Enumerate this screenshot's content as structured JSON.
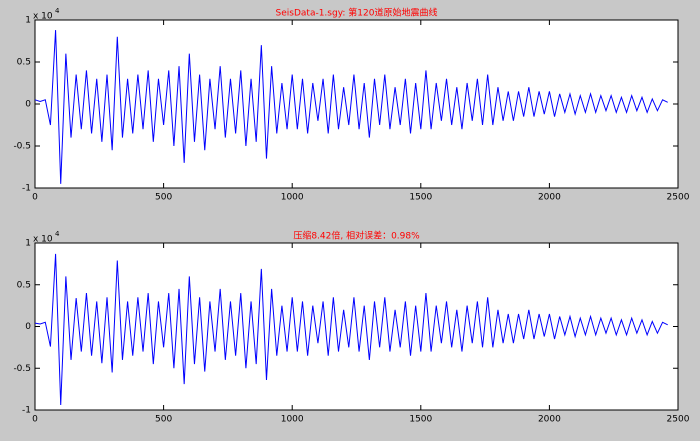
{
  "chart_data": [
    {
      "type": "line",
      "title": "SeisData-1.sgy: 第120道原始地震曲线",
      "title_color": "#ff0000",
      "y_multiplier": {
        "base": "x 10",
        "exponent": "4"
      },
      "xlim": [
        0,
        2500
      ],
      "xticks": [
        0,
        500,
        1000,
        1500,
        2000,
        2500
      ],
      "ylim": [
        -1,
        1
      ],
      "yticks": [
        -1,
        -0.5,
        0,
        0.5,
        1
      ],
      "color": "#0000ff",
      "x": [
        0,
        20,
        40,
        60,
        80,
        100,
        120,
        140,
        160,
        180,
        200,
        220,
        240,
        260,
        280,
        300,
        320,
        340,
        360,
        380,
        400,
        420,
        440,
        460,
        480,
        500,
        520,
        540,
        560,
        580,
        600,
        620,
        640,
        660,
        680,
        700,
        720,
        740,
        760,
        780,
        800,
        820,
        840,
        860,
        880,
        900,
        920,
        940,
        960,
        980,
        1000,
        1020,
        1040,
        1060,
        1080,
        1100,
        1120,
        1140,
        1160,
        1180,
        1200,
        1220,
        1240,
        1260,
        1280,
        1300,
        1320,
        1340,
        1360,
        1380,
        1400,
        1420,
        1440,
        1460,
        1480,
        1500,
        1520,
        1540,
        1560,
        1580,
        1600,
        1620,
        1640,
        1660,
        1680,
        1700,
        1720,
        1740,
        1760,
        1780,
        1800,
        1820,
        1840,
        1860,
        1880,
        1900,
        1920,
        1940,
        1960,
        1980,
        2000,
        2020,
        2040,
        2060,
        2080,
        2100,
        2120,
        2140,
        2160,
        2180,
        2200,
        2220,
        2240,
        2260,
        2280,
        2300,
        2320,
        2340,
        2360,
        2380,
        2400,
        2420,
        2440,
        2460
      ],
      "values": [
        0.05,
        0.03,
        0.05,
        -0.25,
        0.88,
        -0.95,
        0.6,
        -0.4,
        0.35,
        -0.3,
        0.4,
        -0.35,
        0.3,
        -0.45,
        0.35,
        -0.55,
        0.8,
        -0.4,
        0.3,
        -0.35,
        0.35,
        -0.3,
        0.4,
        -0.45,
        0.3,
        -0.25,
        0.4,
        -0.5,
        0.45,
        -0.7,
        0.6,
        -0.45,
        0.35,
        -0.55,
        0.3,
        -0.3,
        0.45,
        -0.4,
        0.3,
        -0.35,
        0.4,
        -0.5,
        0.3,
        -0.45,
        0.7,
        -0.65,
        0.45,
        -0.35,
        0.25,
        -0.3,
        0.35,
        -0.3,
        0.3,
        -0.35,
        0.25,
        -0.2,
        0.3,
        -0.35,
        0.35,
        -0.3,
        0.2,
        -0.25,
        0.35,
        -0.3,
        0.25,
        -0.4,
        0.3,
        -0.25,
        0.35,
        -0.3,
        0.2,
        -0.25,
        0.3,
        -0.35,
        0.25,
        -0.3,
        0.4,
        -0.3,
        0.25,
        -0.2,
        0.3,
        -0.25,
        0.2,
        -0.3,
        0.25,
        -0.2,
        0.3,
        -0.25,
        0.35,
        -0.25,
        0.2,
        -0.2,
        0.15,
        -0.2,
        0.15,
        -0.15,
        0.2,
        -0.15,
        0.15,
        -0.12,
        0.15,
        -0.15,
        0.12,
        -0.1,
        0.12,
        -0.12,
        0.1,
        -0.1,
        0.12,
        -0.1,
        0.1,
        -0.08,
        0.1,
        -0.1,
        0.08,
        -0.1,
        0.1,
        -0.08,
        0.08,
        -0.1,
        0.06,
        -0.08,
        0.05,
        0.02
      ]
    },
    {
      "type": "line",
      "title": "压缩8.42倍, 相对误差：0.98%",
      "title_color": "#ff0000",
      "y_multiplier": {
        "base": "x 10",
        "exponent": "4"
      },
      "xlim": [
        0,
        2500
      ],
      "xticks": [
        0,
        500,
        1000,
        1500,
        2000,
        2500
      ],
      "ylim": [
        -1,
        1
      ],
      "yticks": [
        -1,
        -0.5,
        0,
        0.5,
        1
      ],
      "color": "#0000ff",
      "x": [
        0,
        20,
        40,
        60,
        80,
        100,
        120,
        140,
        160,
        180,
        200,
        220,
        240,
        260,
        280,
        300,
        320,
        340,
        360,
        380,
        400,
        420,
        440,
        460,
        480,
        500,
        520,
        540,
        560,
        580,
        600,
        620,
        640,
        660,
        680,
        700,
        720,
        740,
        760,
        780,
        800,
        820,
        840,
        860,
        880,
        900,
        920,
        940,
        960,
        980,
        1000,
        1020,
        1040,
        1060,
        1080,
        1100,
        1120,
        1140,
        1160,
        1180,
        1200,
        1220,
        1240,
        1260,
        1280,
        1300,
        1320,
        1340,
        1360,
        1380,
        1400,
        1420,
        1440,
        1460,
        1480,
        1500,
        1520,
        1540,
        1560,
        1580,
        1600,
        1620,
        1640,
        1660,
        1680,
        1700,
        1720,
        1740,
        1760,
        1780,
        1800,
        1820,
        1840,
        1860,
        1880,
        1900,
        1920,
        1940,
        1960,
        1980,
        2000,
        2020,
        2040,
        2060,
        2080,
        2100,
        2120,
        2140,
        2160,
        2180,
        2200,
        2220,
        2240,
        2260,
        2280,
        2300,
        2320,
        2340,
        2360,
        2380,
        2400,
        2420,
        2440,
        2460
      ],
      "values": [
        0.04,
        0.03,
        0.05,
        -0.24,
        0.87,
        -0.94,
        0.6,
        -0.4,
        0.34,
        -0.3,
        0.4,
        -0.35,
        0.3,
        -0.44,
        0.35,
        -0.55,
        0.79,
        -0.4,
        0.3,
        -0.35,
        0.35,
        -0.3,
        0.4,
        -0.45,
        0.3,
        -0.25,
        0.4,
        -0.5,
        0.45,
        -0.69,
        0.6,
        -0.45,
        0.35,
        -0.54,
        0.3,
        -0.3,
        0.45,
        -0.4,
        0.3,
        -0.35,
        0.4,
        -0.5,
        0.3,
        -0.45,
        0.69,
        -0.64,
        0.45,
        -0.35,
        0.25,
        -0.3,
        0.35,
        -0.3,
        0.3,
        -0.35,
        0.25,
        -0.2,
        0.3,
        -0.35,
        0.35,
        -0.3,
        0.2,
        -0.25,
        0.35,
        -0.3,
        0.25,
        -0.4,
        0.3,
        -0.25,
        0.35,
        -0.3,
        0.2,
        -0.25,
        0.3,
        -0.35,
        0.25,
        -0.3,
        0.4,
        -0.3,
        0.25,
        -0.2,
        0.3,
        -0.25,
        0.2,
        -0.3,
        0.25,
        -0.2,
        0.3,
        -0.25,
        0.35,
        -0.25,
        0.2,
        -0.2,
        0.15,
        -0.2,
        0.15,
        -0.15,
        0.2,
        -0.15,
        0.15,
        -0.12,
        0.15,
        -0.15,
        0.12,
        -0.1,
        0.12,
        -0.12,
        0.1,
        -0.1,
        0.12,
        -0.1,
        0.1,
        -0.08,
        0.1,
        -0.1,
        0.08,
        -0.1,
        0.1,
        -0.08,
        0.08,
        -0.1,
        0.06,
        -0.08,
        0.05,
        0.02
      ]
    }
  ]
}
